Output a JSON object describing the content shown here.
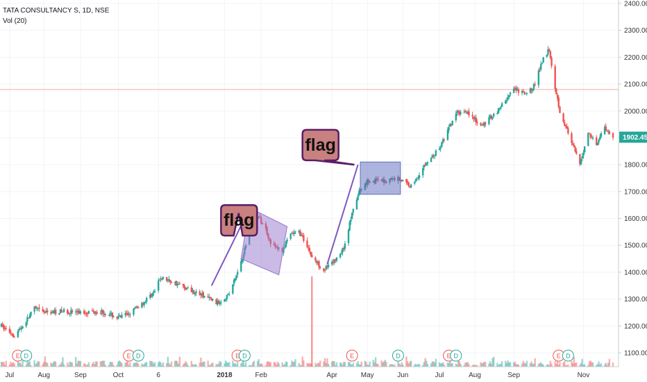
{
  "header": {
    "symbol_line": "TATA CONSULTANCY S, 1D, NSE",
    "volume_line": "Vol (20)"
  },
  "colors": {
    "up": "#26a69a",
    "down": "#ef5350",
    "horizontal_line": "#f5a9a0",
    "flag_box_1": "#9575cd",
    "flag_box_2": "#5c6bc0",
    "callout_fill": "#c98080",
    "callout_border": "#5a1e66",
    "trend_line": "#7e57c2",
    "price_tag": "#26a69a"
  },
  "chart_data": {
    "type": "candlestick",
    "title": "",
    "xlabel": "",
    "ylabel": "",
    "ylim": [
      1060,
      2400
    ],
    "y_ticks": [
      "2400.00",
      "2300.00",
      "2200.00",
      "2100.00",
      "2000.00",
      "1900.00",
      "1800.00",
      "1700.00",
      "1600.00",
      "1500.00",
      "1400.00",
      "1300.00",
      "1200.00",
      "1100.00"
    ],
    "y_tick_values": [
      2400,
      2300,
      2200,
      2100,
      2000,
      1900,
      1800,
      1700,
      1600,
      1500,
      1400,
      1300,
      1200,
      1100
    ],
    "x_ticks": [
      "Jul",
      "Aug",
      "Sep",
      "Oct",
      "6",
      "2018",
      "Feb",
      "Apr",
      "May",
      "Jun",
      "Jul",
      "Aug",
      "Sep",
      "Nov"
    ],
    "x_tick_dates": [
      "2017-07-03",
      "2017-08-01",
      "2017-09-01",
      "2017-10-03",
      "2017-11-06",
      "2018-01-01",
      "2018-02-01",
      "2018-04-02",
      "2018-05-02",
      "2018-06-01",
      "2018-07-02",
      "2018-08-01",
      "2018-09-03",
      "2018-11-01"
    ],
    "date_range": [
      "2017-06-26",
      "2018-11-26"
    ],
    "last_price": "1902.45",
    "horizontal_line_price": 2080,
    "price_path": [
      [
        "2017-06-26",
        1200
      ],
      [
        "2017-07-07",
        1165
      ],
      [
        "2017-07-14",
        1200
      ],
      [
        "2017-07-24",
        1265
      ],
      [
        "2017-08-01",
        1250
      ],
      [
        "2017-08-18",
        1255
      ],
      [
        "2017-09-01",
        1250
      ],
      [
        "2017-09-18",
        1255
      ],
      [
        "2017-10-03",
        1230
      ],
      [
        "2017-10-12",
        1245
      ],
      [
        "2017-10-25",
        1290
      ],
      [
        "2017-11-03",
        1330
      ],
      [
        "2017-11-08",
        1380
      ],
      [
        "2017-11-20",
        1360
      ],
      [
        "2017-12-05",
        1330
      ],
      [
        "2017-12-20",
        1300
      ],
      [
        "2017-12-26",
        1285
      ],
      [
        "2018-01-05",
        1320
      ],
      [
        "2018-01-12",
        1400
      ],
      [
        "2018-01-19",
        1500
      ],
      [
        "2018-01-24",
        1590
      ],
      [
        "2018-01-29",
        1610
      ],
      [
        "2018-02-05",
        1560
      ],
      [
        "2018-02-10",
        1500
      ],
      [
        "2018-02-19",
        1480
      ],
      [
        "2018-02-26",
        1540
      ],
      [
        "2018-03-05",
        1550
      ],
      [
        "2018-03-12",
        1500
      ],
      [
        "2018-03-16",
        1455
      ],
      [
        "2018-03-26",
        1410
      ],
      [
        "2018-04-02",
        1430
      ],
      [
        "2018-04-12",
        1490
      ],
      [
        "2018-04-18",
        1600
      ],
      [
        "2018-04-25",
        1700
      ],
      [
        "2018-05-02",
        1740
      ],
      [
        "2018-05-15",
        1740
      ],
      [
        "2018-05-28",
        1750
      ],
      [
        "2018-06-08",
        1720
      ],
      [
        "2018-06-20",
        1800
      ],
      [
        "2018-07-02",
        1860
      ],
      [
        "2018-07-16",
        1990
      ],
      [
        "2018-07-25",
        2000
      ],
      [
        "2018-08-06",
        1940
      ],
      [
        "2018-08-20",
        2000
      ],
      [
        "2018-09-03",
        2080
      ],
      [
        "2018-09-14",
        2060
      ],
      [
        "2018-09-21",
        2100
      ],
      [
        "2018-09-28",
        2200
      ],
      [
        "2018-10-03",
        2230
      ],
      [
        "2018-10-08",
        2090
      ],
      [
        "2018-10-12",
        2000
      ],
      [
        "2018-10-22",
        1880
      ],
      [
        "2018-10-29",
        1800
      ],
      [
        "2018-11-05",
        1920
      ],
      [
        "2018-11-12",
        1880
      ],
      [
        "2018-11-19",
        1940
      ],
      [
        "2018-11-26",
        1902
      ]
    ],
    "volume_spike": {
      "date": "2018-03-16",
      "relative": 1.0
    },
    "events": [
      {
        "label": "E",
        "date": "2017-07-10"
      },
      {
        "label": "D",
        "date": "2017-07-17"
      },
      {
        "label": "E",
        "date": "2017-10-12"
      },
      {
        "label": "D",
        "date": "2017-10-20"
      },
      {
        "label": "E",
        "date": "2018-01-12"
      },
      {
        "label": "D",
        "date": "2018-01-18"
      },
      {
        "label": "E",
        "date": "2018-04-19"
      },
      {
        "label": "D",
        "date": "2018-05-28"
      },
      {
        "label": "E",
        "date": "2018-07-10"
      },
      {
        "label": "D",
        "date": "2018-07-16"
      },
      {
        "label": "E",
        "date": "2018-10-11"
      },
      {
        "label": "D",
        "date": "2018-10-19"
      }
    ],
    "annotations": [
      {
        "label": "flag",
        "box": [
          [
            "2018-01-22",
            1640
          ],
          [
            "2018-02-23",
            1570
          ],
          [
            "2018-02-16",
            1390
          ],
          [
            "2018-01-15",
            1450
          ]
        ],
        "trend_line": [
          [
            "2017-12-21",
            1350
          ],
          [
            "2018-01-18",
            1600
          ]
        ],
        "callout_anchor": [
          "2017-12-29",
          1650
        ],
        "callout_pointer": [
          "2018-01-13",
          1620
        ]
      },
      {
        "label": "flag",
        "box": [
          [
            "2018-04-26",
            1810
          ],
          [
            "2018-05-30",
            1810
          ],
          [
            "2018-05-30",
            1690
          ],
          [
            "2018-04-26",
            1690
          ]
        ],
        "trend_line": [
          [
            "2018-03-29",
            1430
          ],
          [
            "2018-04-24",
            1800
          ]
        ],
        "callout_anchor": [
          "2018-03-08",
          1930
        ],
        "callout_pointer": [
          "2018-04-21",
          1800
        ]
      }
    ]
  }
}
